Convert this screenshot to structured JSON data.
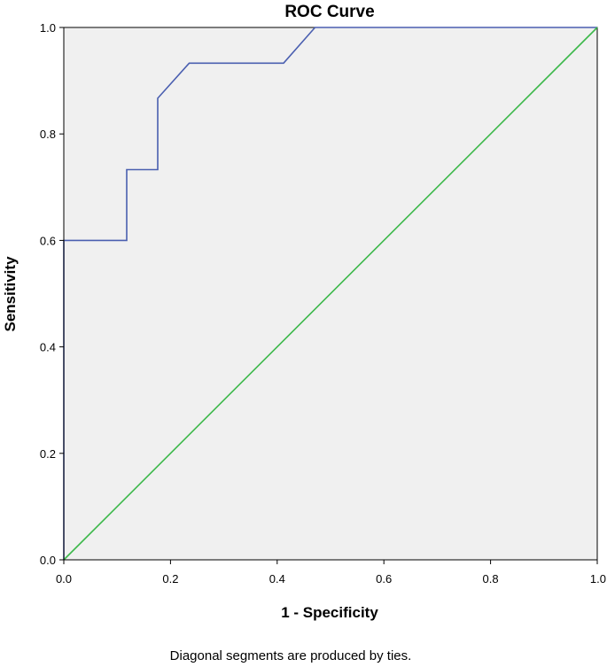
{
  "chart_data": {
    "type": "line",
    "title": "ROC Curve",
    "xlabel": "1 - Specificity",
    "ylabel": "Sensitivity",
    "xlim": [
      0.0,
      1.0
    ],
    "ylim": [
      0.0,
      1.0
    ],
    "x_ticks": [
      "0.0",
      "0.2",
      "0.4",
      "0.6",
      "0.8",
      "1.0"
    ],
    "y_ticks": [
      "0.0",
      "0.2",
      "0.4",
      "0.6",
      "0.8",
      "1.0"
    ],
    "grid": false,
    "legend": "none",
    "footnote": "Diagonal segments are produced by ties.",
    "series": [
      {
        "color": "#4a5fb0",
        "x": [
          0.0,
          0.0,
          0.118,
          0.118,
          0.176,
          0.176,
          0.235,
          0.412,
          0.471,
          1.0
        ],
        "y": [
          0.0,
          0.6,
          0.6,
          0.733,
          0.733,
          0.867,
          0.933,
          0.933,
          1.0,
          1.0
        ]
      },
      {
        "color": "#3cb84a",
        "x": [
          0.0,
          1.0
        ],
        "y": [
          0.0,
          1.0
        ]
      }
    ],
    "plot_background": "#f0f0f0",
    "frame_color": "#000000"
  }
}
